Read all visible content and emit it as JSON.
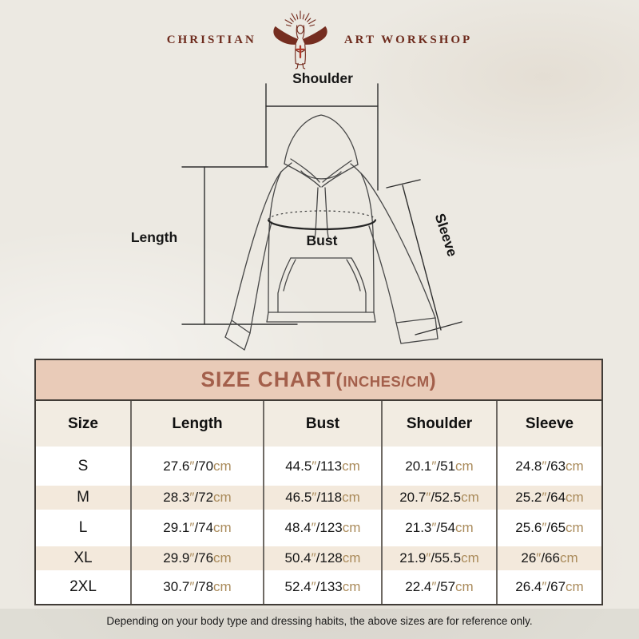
{
  "brand": {
    "name_left": "CHRISTIAN",
    "name_right": "ART WORKSHOP",
    "logo_icon": "jesus-rays-cross-icon"
  },
  "diagram": {
    "labels": {
      "shoulder": "Shoulder",
      "length": "Length",
      "bust": "Bust",
      "sleeve": "Sleeve"
    }
  },
  "size_chart": {
    "title": {
      "main": "SIZE CHART",
      "paren_open": "(",
      "units": "INCHES/CM",
      "paren_close": ")"
    },
    "columns": [
      "Size",
      "Length",
      "Bust",
      "Shoulder",
      "Sleeve"
    ],
    "unit_inch_mark": "″",
    "unit_cm": "cm",
    "rows": [
      {
        "size": "S",
        "length": {
          "in": "27.6",
          "cm": "70"
        },
        "bust": {
          "in": "44.5",
          "cm": "113"
        },
        "shoulder": {
          "in": "20.1",
          "cm": "51"
        },
        "sleeve": {
          "in": "24.8",
          "cm": "63"
        }
      },
      {
        "size": "M",
        "length": {
          "in": "28.3",
          "cm": "72"
        },
        "bust": {
          "in": "46.5",
          "cm": "118"
        },
        "shoulder": {
          "in": "20.7",
          "cm": "52.5"
        },
        "sleeve": {
          "in": "25.2",
          "cm": "64"
        }
      },
      {
        "size": "L",
        "length": {
          "in": "29.1",
          "cm": "74"
        },
        "bust": {
          "in": "48.4",
          "cm": "123"
        },
        "shoulder": {
          "in": "21.3",
          "cm": "54"
        },
        "sleeve": {
          "in": "25.6",
          "cm": "65"
        }
      },
      {
        "size": "XL",
        "length": {
          "in": "29.9",
          "cm": "76"
        },
        "bust": {
          "in": "50.4",
          "cm": "128"
        },
        "shoulder": {
          "in": "21.9",
          "cm": "55.5"
        },
        "sleeve": {
          "in": "26",
          "cm": "66"
        }
      },
      {
        "size": "2XL",
        "length": {
          "in": "30.7",
          "cm": "78"
        },
        "bust": {
          "in": "52.4",
          "cm": "133"
        },
        "shoulder": {
          "in": "22.4",
          "cm": "57"
        },
        "sleeve": {
          "in": "26.4",
          "cm": "67"
        }
      }
    ]
  },
  "footer": {
    "note": "Depending on your body type and dressing habits, the above sizes are for reference only."
  },
  "colors": {
    "accent_pink": "#e9cbb8",
    "title_text": "#a35f4b",
    "beige_row": "#f3e9dc",
    "unit_tan": "#aa8b5b",
    "logo_maroon": "#752d20",
    "cross_red": "#b23a2b"
  }
}
